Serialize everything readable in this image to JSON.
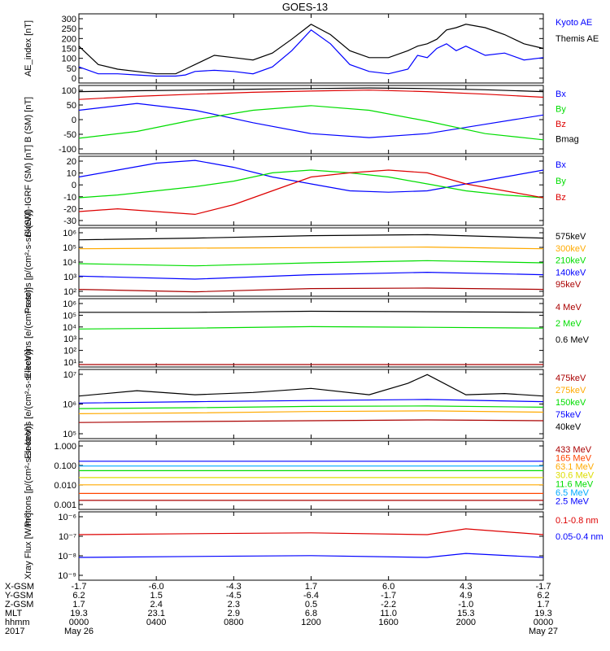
{
  "chart_data": [
    {
      "type": "line",
      "title": "GOES-13",
      "ylabel": "AE_index [nT]",
      "yscale": "linear",
      "ylim": [
        0,
        300
      ],
      "yticks": [
        "300",
        "250",
        "200",
        "150",
        "100",
        "50",
        "0"
      ],
      "series": [
        {
          "name": "Kyoto AE",
          "color": "#0000ff",
          "x": [
            0,
            1,
            2,
            3,
            4,
            5,
            5.5,
            6,
            7,
            8,
            9,
            10,
            11,
            12,
            13,
            14,
            15,
            16,
            17,
            17.5,
            18,
            18.5,
            19,
            19.5,
            20,
            21,
            22,
            23,
            24
          ],
          "y": [
            70,
            40,
            40,
            35,
            30,
            30,
            35,
            50,
            55,
            50,
            40,
            70,
            140,
            230,
            170,
            80,
            50,
            40,
            60,
            120,
            110,
            150,
            170,
            140,
            160,
            120,
            130,
            100,
            110
          ]
        },
        {
          "name": "Themis AE",
          "color": "#000000",
          "x": [
            0,
            1,
            2,
            3,
            4,
            5,
            5.5,
            6,
            7,
            8,
            9,
            10,
            11,
            12,
            13,
            14,
            15,
            16,
            17,
            17.5,
            18,
            18.5,
            19,
            19.5,
            20,
            21,
            22,
            23,
            24
          ],
          "y": [
            160,
            80,
            60,
            50,
            40,
            40,
            60,
            80,
            120,
            110,
            100,
            130,
            190,
            255,
            210,
            140,
            110,
            110,
            140,
            160,
            170,
            190,
            230,
            240,
            255,
            240,
            210,
            170,
            150
          ]
        }
      ]
    },
    {
      "type": "line",
      "ylabel": "B (SM) [nT]",
      "yscale": "linear",
      "ylim": [
        -100,
        120
      ],
      "yticks": [
        "100",
        "50",
        "0",
        "-50",
        "-100"
      ],
      "series": [
        {
          "name": "Bx",
          "color": "#0000ff",
          "x": [
            0,
            3,
            6,
            9,
            12,
            15,
            18,
            21,
            24
          ],
          "y": [
            40,
            62,
            40,
            0,
            -35,
            -48,
            -35,
            -5,
            25
          ]
        },
        {
          "name": "By",
          "color": "#00dd00",
          "x": [
            0,
            3,
            6,
            9,
            12,
            15,
            18,
            21,
            24
          ],
          "y": [
            -50,
            -28,
            10,
            40,
            55,
            40,
            5,
            -35,
            -55
          ]
        },
        {
          "name": "Bz",
          "color": "#dd0000",
          "x": [
            0,
            3,
            6,
            9,
            12,
            15,
            18,
            21,
            24
          ],
          "y": [
            75,
            85,
            92,
            98,
            102,
            105,
            100,
            92,
            82
          ]
        },
        {
          "name": "Bmag",
          "color": "#000000",
          "x": [
            0,
            3,
            6,
            9,
            12,
            15,
            18,
            21,
            24
          ],
          "y": [
            100,
            103,
            105,
            108,
            110,
            112,
            110,
            106,
            100
          ]
        }
      ]
    },
    {
      "type": "line",
      "ylabel": "B (SM)-IGRF (SM) [nT]",
      "yscale": "linear",
      "ylim": [
        -30,
        20
      ],
      "yticks": [
        "20",
        "10",
        "0",
        "-10",
        "-20",
        "-30"
      ],
      "series": [
        {
          "name": "Bx",
          "color": "#0000ff",
          "x": [
            0,
            2,
            4,
            6,
            8,
            10,
            12,
            14,
            16,
            18,
            20,
            22,
            24
          ],
          "y": [
            5,
            10,
            15,
            17,
            12,
            5,
            0,
            -5,
            -6,
            -5,
            0,
            5,
            10
          ]
        },
        {
          "name": "By",
          "color": "#00dd00",
          "x": [
            0,
            2,
            4,
            6,
            8,
            10,
            12,
            14,
            16,
            18,
            20,
            22,
            24
          ],
          "y": [
            -10,
            -8,
            -5,
            -2,
            2,
            8,
            10,
            8,
            5,
            0,
            -5,
            -8,
            -10
          ]
        },
        {
          "name": "Bz",
          "color": "#dd0000",
          "x": [
            0,
            2,
            4,
            6,
            8,
            10,
            12,
            14,
            16,
            18,
            20,
            22,
            24
          ],
          "y": [
            -20,
            -18,
            -20,
            -22,
            -15,
            -5,
            5,
            8,
            10,
            8,
            0,
            -5,
            -10
          ]
        }
      ]
    },
    {
      "type": "line",
      "ylabel": "Protons [p/(cm²-s-sr-keV)]",
      "yscale": "log",
      "ylim": [
        100,
        1000000
      ],
      "yticks": [
        "10⁶",
        "10⁵",
        "10⁴",
        "10³",
        "10²"
      ],
      "series": [
        {
          "name": "575keV",
          "color": "#000000",
          "x": [
            0,
            6,
            12,
            18,
            24
          ],
          "y": [
            200000,
            250000,
            350000,
            400000,
            250000
          ]
        },
        {
          "name": "300keV",
          "color": "#ffaa00",
          "x": [
            0,
            6,
            12,
            18,
            24
          ],
          "y": [
            60000,
            65000,
            70000,
            75000,
            60000
          ]
        },
        {
          "name": "210keV",
          "color": "#00dd00",
          "x": [
            0,
            6,
            12,
            18,
            24
          ],
          "y": [
            8000,
            6000,
            9000,
            12000,
            9000
          ]
        },
        {
          "name": "140keV",
          "color": "#0000ff",
          "x": [
            0,
            6,
            12,
            18,
            24
          ],
          "y": [
            1500,
            1000,
            1800,
            2500,
            1800
          ]
        },
        {
          "name": "95keV",
          "color": "#aa0000",
          "x": [
            0,
            6,
            12,
            18,
            24
          ],
          "y": [
            250,
            180,
            280,
            300,
            250
          ]
        }
      ]
    },
    {
      "type": "line",
      "ylabel": "Electrons [e/(cm²-s-sr)]",
      "yscale": "log",
      "ylim": [
        10,
        1000000
      ],
      "yticks": [
        "10⁶",
        "10⁵",
        "10⁴",
        "10³",
        "10²",
        "10¹"
      ],
      "series": [
        {
          "name": "4 MeV",
          "color": "#aa0000",
          "x": [
            0,
            6,
            12,
            18,
            24
          ],
          "y": [
            15,
            15,
            15,
            15,
            15
          ]
        },
        {
          "name": "2 MeV",
          "color": "#00dd00",
          "x": [
            0,
            6,
            12,
            18,
            24
          ],
          "y": [
            6000,
            7000,
            9000,
            8000,
            7000
          ]
        },
        {
          "name": "0.6 MeV",
          "color": "#000000",
          "x": [
            0,
            6,
            12,
            18,
            24
          ],
          "y": [
            100000,
            100000,
            120000,
            110000,
            100000
          ]
        }
      ]
    },
    {
      "type": "line",
      "ylabel": "Electrons [e/(cm²-s-sr-keV)]",
      "yscale": "log",
      "ylim": [
        10000,
        10000000
      ],
      "yticks": [
        "10⁷",
        "10⁶",
        "10⁵"
      ],
      "series": [
        {
          "name": "475keV",
          "color": "#aa0000",
          "x": [
            0,
            6,
            12,
            18,
            24
          ],
          "y": [
            50000,
            55000,
            60000,
            65000,
            60000
          ]
        },
        {
          "name": "275keV",
          "color": "#ffaa00",
          "x": [
            0,
            6,
            12,
            18,
            24
          ],
          "y": [
            120000,
            130000,
            150000,
            160000,
            140000
          ]
        },
        {
          "name": "150keV",
          "color": "#00dd00",
          "x": [
            0,
            6,
            12,
            18,
            24
          ],
          "y": [
            200000,
            220000,
            250000,
            260000,
            230000
          ]
        },
        {
          "name": "75keV",
          "color": "#0000ff",
          "x": [
            0,
            6,
            12,
            18,
            24
          ],
          "y": [
            350000,
            400000,
            450000,
            500000,
            400000
          ]
        },
        {
          "name": "40keV",
          "color": "#000000",
          "x": [
            0,
            3,
            6,
            9,
            12,
            15,
            17,
            18,
            20,
            22,
            24
          ],
          "y": [
            700000,
            1200000,
            800000,
            1000000,
            1500000,
            800000,
            2500000,
            6000000,
            800000,
            900000,
            700000
          ]
        }
      ]
    },
    {
      "type": "line",
      "ylabel": "Protons [p/(cm²-s-sr-keV)]",
      "yscale": "log",
      "ylim": [
        0.001,
        1.0
      ],
      "yticks": [
        "1.000",
        "0.100",
        "0.010",
        "0.001"
      ],
      "series": [
        {
          "name": "433 MeV",
          "color": "#aa0000",
          "x": [
            0,
            24
          ],
          "y": [
            0.0025,
            0.0025
          ]
        },
        {
          "name": "165 MeV",
          "color": "#ff4400",
          "x": [
            0,
            24
          ],
          "y": [
            0.005,
            0.005
          ]
        },
        {
          "name": "63.1 MeV",
          "color": "#ffaa00",
          "x": [
            0,
            24
          ],
          "y": [
            0.012,
            0.012
          ]
        },
        {
          "name": "30.6 MeV",
          "color": "#dddd00",
          "x": [
            0,
            24
          ],
          "y": [
            0.025,
            0.025
          ]
        },
        {
          "name": "11.6 MeV",
          "color": "#00dd00",
          "x": [
            0,
            24
          ],
          "y": [
            0.05,
            0.05
          ]
        },
        {
          "name": "6.5 MeV",
          "color": "#00aaff",
          "x": [
            0,
            24
          ],
          "y": [
            0.08,
            0.08
          ]
        },
        {
          "name": "2.5 MeV",
          "color": "#0000ff",
          "x": [
            0,
            24
          ],
          "y": [
            0.13,
            0.13
          ]
        }
      ]
    },
    {
      "type": "line",
      "ylabel": "Xray Flux [W/m²]",
      "yscale": "log",
      "ylim": [
        1e-09,
        1e-06
      ],
      "yticks": [
        "10⁻⁶",
        "10⁻⁷",
        "10⁻⁸",
        "10⁻⁹"
      ],
      "series": [
        {
          "name": "0.1-0.8 nm",
          "color": "#dd0000",
          "x": [
            0,
            6,
            12,
            18,
            20,
            24
          ],
          "y": [
            1e-07,
            1.1e-07,
            1.2e-07,
            1e-07,
            1.8e-07,
            1e-07
          ]
        },
        {
          "name": "0.05-0.4 nm",
          "color": "#0000ff",
          "x": [
            0,
            6,
            12,
            18,
            20,
            24
          ],
          "y": [
            1e-08,
            1.1e-08,
            1.2e-08,
            1e-08,
            1.5e-08,
            1e-08
          ]
        }
      ]
    }
  ],
  "x_axis": {
    "ticks_x": [
      0,
      4,
      8,
      12,
      16,
      20,
      24
    ],
    "rows": [
      {
        "label": "X-GSM",
        "values": [
          "-1.7",
          "-6.0",
          "-4.3",
          "1.7",
          "6.0",
          "4.3",
          "-1.7"
        ]
      },
      {
        "label": "Y-GSM",
        "values": [
          "6.2",
          "1.5",
          "-4.5",
          "-6.4",
          "-1.7",
          "4.9",
          "6.2"
        ]
      },
      {
        "label": "Z-GSM",
        "values": [
          "1.7",
          "2.4",
          "2.3",
          "0.5",
          "-2.2",
          "-1.0",
          "1.7"
        ]
      },
      {
        "label": "MLT",
        "values": [
          "19.3",
          "23.1",
          "2.9",
          "6.8",
          "11.0",
          "15.3",
          "19.3"
        ]
      },
      {
        "label": "hhmm",
        "values": [
          "0000",
          "0400",
          "0800",
          "1200",
          "1600",
          "2000",
          "0000"
        ]
      }
    ],
    "date_row": {
      "label": "2017",
      "start": "May 26",
      "end": "May 27"
    }
  }
}
